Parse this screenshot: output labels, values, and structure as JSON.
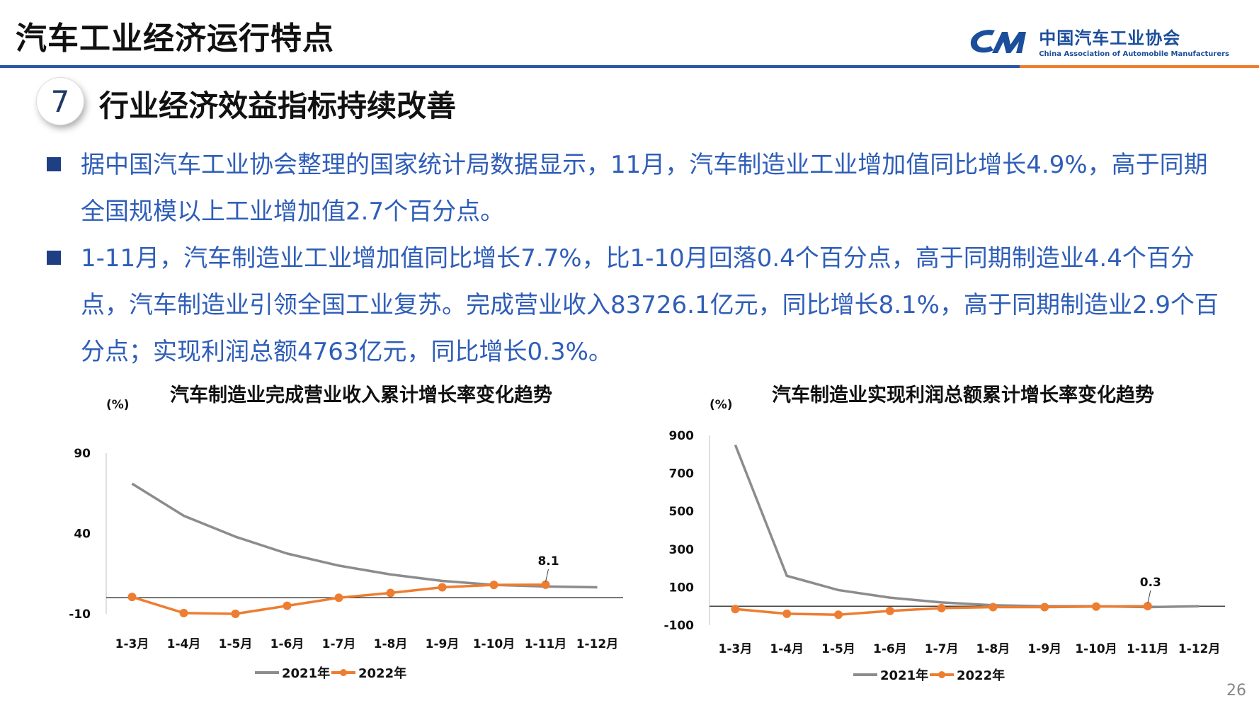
{
  "header": {
    "title": "汽车工业经济运行特点",
    "logo_cn": "中国汽车工业协会",
    "logo_en": "China Association of Automobile Manufacturers"
  },
  "section": {
    "number": "7",
    "title": "行业经济效益指标持续改善"
  },
  "bullets": [
    "据中国汽车工业协会整理的国家统计局数据显示，11月，汽车制造业工业增加值同比增长4.9%，高于同期全国规模以上工业增加值2.7个百分点。",
    "1-11月，汽车制造业工业增加值同比增长7.7%，比1-10月回落0.4个百分点，高于同期制造业4.4个百分点，汽车制造业引领全国工业复苏。完成营业收入83726.1亿元，同比增长8.1%，高于同期制造业2.9个百分点；实现利润总额4763亿元，同比增长0.3%。"
  ],
  "page_number": "26",
  "colors": {
    "series_2021": "#8c8c8c",
    "series_2022": "#ed7d31",
    "brand_blue": "#2a56a5",
    "text_blue": "#2f5eb8"
  },
  "chart_data": [
    {
      "type": "line",
      "title": "汽车制造业完成营业收入累计增长率变化趋势",
      "unit": "(%)",
      "categories": [
        "1-3月",
        "1-4月",
        "1-5月",
        "1-6月",
        "1-7月",
        "1-8月",
        "1-9月",
        "1-10月",
        "1-11月",
        "1-12月"
      ],
      "y_ticks": [
        "90",
        "40",
        "-10"
      ],
      "ylim": [
        -10,
        90
      ],
      "series": [
        {
          "name": "2021年",
          "values": [
            71,
            51,
            38,
            27.5,
            20,
            14.5,
            10.5,
            8,
            7,
            6.5
          ]
        },
        {
          "name": "2022年",
          "values": [
            0.5,
            -9.5,
            -10,
            -5,
            0,
            3,
            6.5,
            8,
            8.1,
            null
          ]
        }
      ],
      "annotation": {
        "text": "8.1",
        "series": 1,
        "index": 8
      },
      "legend": "bottom"
    },
    {
      "type": "line",
      "title": "汽车制造业实现利润总额累计增长率变化趋势",
      "unit": "(%)",
      "categories": [
        "1-3月",
        "1-4月",
        "1-5月",
        "1-6月",
        "1-7月",
        "1-8月",
        "1-9月",
        "1-10月",
        "1-11月",
        "1-12月"
      ],
      "y_ticks": [
        "900",
        "700",
        "500",
        "300",
        "100",
        "-100"
      ],
      "ylim": [
        -100,
        900
      ],
      "series": [
        {
          "name": "2021年",
          "values": [
            850,
            160,
            85,
            45,
            20,
            5,
            0,
            0,
            -5,
            0
          ]
        },
        {
          "name": "2022年",
          "values": [
            -15,
            -40,
            -45,
            -25,
            -10,
            -5,
            -5,
            -2,
            0.3,
            null
          ]
        }
      ],
      "annotation": {
        "text": "0.3",
        "series": 1,
        "index": 8
      },
      "legend": "bottom"
    }
  ]
}
